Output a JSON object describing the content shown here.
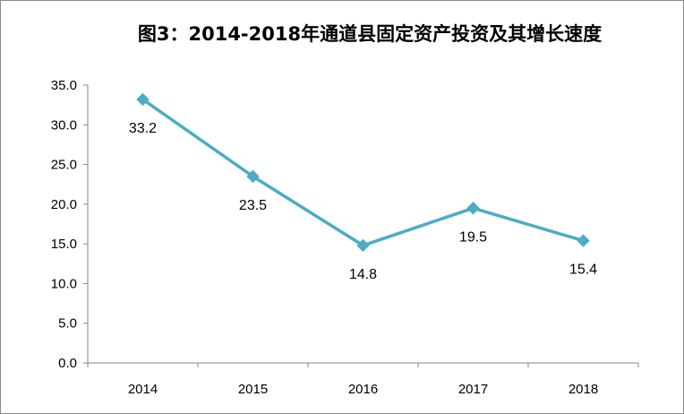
{
  "chart_data": {
    "type": "line",
    "title": "图3：2014-2018年通道县固定资产投资及其增长速度",
    "xlabel": "",
    "ylabel": "",
    "categories": [
      "2014",
      "2015",
      "2016",
      "2017",
      "2018"
    ],
    "series": [
      {
        "values": [
          33.2,
          23.5,
          14.8,
          19.5,
          15.4
        ],
        "color": "#4bacc6"
      }
    ],
    "data_labels": [
      "33.2",
      "23.5",
      "14.8",
      "19.5",
      "15.4"
    ],
    "ylim": [
      0,
      35
    ],
    "yticks": [
      "0.0",
      "5.0",
      "10.0",
      "15.0",
      "20.0",
      "25.0",
      "30.0",
      "35.0"
    ],
    "grid": false,
    "legend": "none",
    "marker": "diamond"
  }
}
